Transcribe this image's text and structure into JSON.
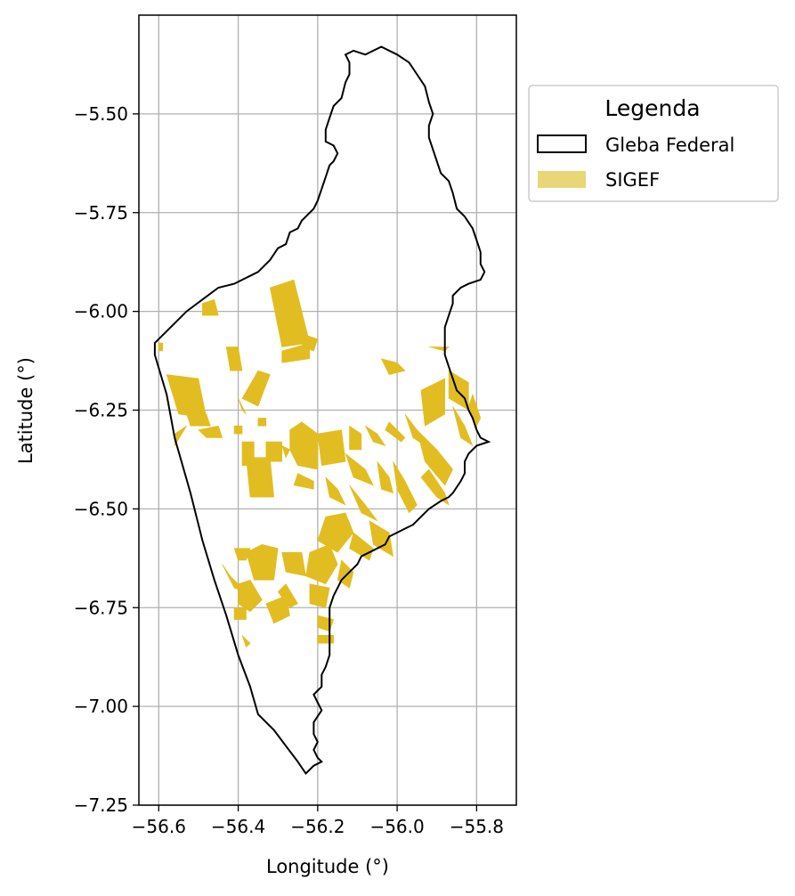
{
  "map": {
    "xlabel": "Longitude (°)",
    "ylabel": "Latitude (°)",
    "xlim": [
      -56.65,
      -55.7
    ],
    "ylim": [
      -7.25,
      -5.25
    ],
    "xticks": [
      -56.6,
      -56.4,
      -56.2,
      -56.0,
      -55.8
    ],
    "xtick_labels": [
      "−56.6",
      "−56.4",
      "−56.2",
      "−56.0",
      "−55.8"
    ],
    "yticks": [
      -5.5,
      -5.75,
      -6.0,
      -6.25,
      -6.5,
      -6.75,
      -7.0,
      -7.25
    ],
    "ytick_labels": [
      "−5.50",
      "−5.75",
      "−6.00",
      "−6.25",
      "−6.50",
      "−6.75",
      "−7.00",
      "−7.25"
    ],
    "grid": true
  },
  "legend": {
    "title": "Legenda",
    "items": [
      {
        "label": "Gleba Federal",
        "swatch": "outline",
        "color": "#000000"
      },
      {
        "label": "SIGEF",
        "swatch": "fill",
        "color": "#e9d676"
      }
    ]
  },
  "colors": {
    "sigef_fill": "#e1bd21",
    "boundary": "#000000",
    "grid": "#b0b0b0"
  },
  "gleba_federal": [
    [
      -56.61,
      -6.08
    ],
    [
      -56.57,
      -6.04
    ],
    [
      -56.53,
      -6.0
    ],
    [
      -56.49,
      -5.97
    ],
    [
      -56.45,
      -5.94
    ],
    [
      -56.41,
      -5.93
    ],
    [
      -56.37,
      -5.91
    ],
    [
      -56.35,
      -5.9
    ],
    [
      -56.32,
      -5.87
    ],
    [
      -56.3,
      -5.84
    ],
    [
      -56.28,
      -5.83
    ],
    [
      -56.27,
      -5.8
    ],
    [
      -56.25,
      -5.79
    ],
    [
      -56.24,
      -5.77
    ],
    [
      -56.23,
      -5.76
    ],
    [
      -56.21,
      -5.74
    ],
    [
      -56.2,
      -5.72
    ],
    [
      -56.19,
      -5.69
    ],
    [
      -56.18,
      -5.66
    ],
    [
      -56.17,
      -5.63
    ],
    [
      -56.16,
      -5.62
    ],
    [
      -56.15,
      -5.6
    ],
    [
      -56.16,
      -5.58
    ],
    [
      -56.18,
      -5.57
    ],
    [
      -56.18,
      -5.54
    ],
    [
      -56.17,
      -5.51
    ],
    [
      -56.16,
      -5.48
    ],
    [
      -56.14,
      -5.46
    ],
    [
      -56.13,
      -5.42
    ],
    [
      -56.12,
      -5.4
    ],
    [
      -56.12,
      -5.37
    ],
    [
      -56.13,
      -5.35
    ],
    [
      -56.11,
      -5.34
    ],
    [
      -56.08,
      -5.35
    ],
    [
      -56.06,
      -5.34
    ],
    [
      -56.04,
      -5.33
    ],
    [
      -56.0,
      -5.35
    ],
    [
      -55.97,
      -5.37
    ],
    [
      -55.95,
      -5.4
    ],
    [
      -55.93,
      -5.43
    ],
    [
      -55.92,
      -5.47
    ],
    [
      -55.91,
      -5.5
    ],
    [
      -55.92,
      -5.53
    ],
    [
      -55.92,
      -5.56
    ],
    [
      -55.91,
      -5.59
    ],
    [
      -55.9,
      -5.62
    ],
    [
      -55.89,
      -5.65
    ],
    [
      -55.87,
      -5.67
    ],
    [
      -55.86,
      -5.7
    ],
    [
      -55.85,
      -5.74
    ],
    [
      -55.83,
      -5.76
    ],
    [
      -55.81,
      -5.79
    ],
    [
      -55.8,
      -5.82
    ],
    [
      -55.79,
      -5.85
    ],
    [
      -55.79,
      -5.88
    ],
    [
      -55.78,
      -5.9
    ],
    [
      -55.79,
      -5.92
    ],
    [
      -55.82,
      -5.93
    ],
    [
      -55.84,
      -5.94
    ],
    [
      -55.86,
      -5.96
    ],
    [
      -55.86,
      -5.98
    ],
    [
      -55.87,
      -6.01
    ],
    [
      -55.88,
      -6.04
    ],
    [
      -55.88,
      -6.08
    ],
    [
      -55.88,
      -6.11
    ],
    [
      -55.87,
      -6.14
    ],
    [
      -55.86,
      -6.17
    ],
    [
      -55.85,
      -6.2
    ],
    [
      -55.83,
      -6.22
    ],
    [
      -55.82,
      -6.25
    ],
    [
      -55.81,
      -6.27
    ],
    [
      -55.8,
      -6.3
    ],
    [
      -55.79,
      -6.32
    ],
    [
      -55.77,
      -6.33
    ],
    [
      -55.8,
      -6.34
    ],
    [
      -55.82,
      -6.36
    ],
    [
      -55.83,
      -6.38
    ],
    [
      -55.83,
      -6.41
    ],
    [
      -55.84,
      -6.43
    ],
    [
      -55.86,
      -6.46
    ],
    [
      -55.87,
      -6.47
    ],
    [
      -55.89,
      -6.48
    ],
    [
      -55.92,
      -6.5
    ],
    [
      -55.94,
      -6.52
    ],
    [
      -55.96,
      -6.54
    ],
    [
      -55.98,
      -6.55
    ],
    [
      -56.0,
      -6.56
    ],
    [
      -56.02,
      -6.57
    ],
    [
      -56.03,
      -6.59
    ],
    [
      -56.05,
      -6.6
    ],
    [
      -56.07,
      -6.61
    ],
    [
      -56.09,
      -6.62
    ],
    [
      -56.1,
      -6.64
    ],
    [
      -56.12,
      -6.66
    ],
    [
      -56.14,
      -6.68
    ],
    [
      -56.15,
      -6.7
    ],
    [
      -56.16,
      -6.72
    ],
    [
      -56.17,
      -6.75
    ],
    [
      -56.17,
      -6.78
    ],
    [
      -56.17,
      -6.81
    ],
    [
      -56.17,
      -6.84
    ],
    [
      -56.17,
      -6.87
    ],
    [
      -56.18,
      -6.9
    ],
    [
      -56.19,
      -6.92
    ],
    [
      -56.19,
      -6.95
    ],
    [
      -56.21,
      -6.97
    ],
    [
      -56.2,
      -6.99
    ],
    [
      -56.19,
      -7.01
    ],
    [
      -56.21,
      -7.04
    ],
    [
      -56.21,
      -7.07
    ],
    [
      -56.2,
      -7.09
    ],
    [
      -56.21,
      -7.11
    ],
    [
      -56.2,
      -7.13
    ],
    [
      -56.19,
      -7.14
    ],
    [
      -56.21,
      -7.15
    ],
    [
      -56.23,
      -7.17
    ],
    [
      -56.25,
      -7.14
    ],
    [
      -56.28,
      -7.1
    ],
    [
      -56.31,
      -7.06
    ],
    [
      -56.35,
      -7.02
    ],
    [
      -56.37,
      -6.95
    ],
    [
      -56.4,
      -6.87
    ],
    [
      -56.43,
      -6.77
    ],
    [
      -56.46,
      -6.68
    ],
    [
      -56.49,
      -6.58
    ],
    [
      -56.52,
      -6.46
    ],
    [
      -56.56,
      -6.32
    ],
    [
      -56.58,
      -6.21
    ],
    [
      -56.61,
      -6.11
    ],
    [
      -56.61,
      -6.08
    ]
  ],
  "sigef_parcels": [
    [
      [
        -56.32,
        -5.94
      ],
      [
        -56.26,
        -5.92
      ],
      [
        -56.22,
        -6.08
      ],
      [
        -56.29,
        -6.09
      ]
    ],
    [
      [
        -56.23,
        -6.06
      ],
      [
        -56.2,
        -6.07
      ],
      [
        -56.21,
        -6.1
      ],
      [
        -56.24,
        -6.09
      ]
    ],
    [
      [
        -56.29,
        -6.1
      ],
      [
        -56.22,
        -6.08
      ],
      [
        -56.22,
        -6.12
      ],
      [
        -56.29,
        -6.13
      ]
    ],
    [
      [
        -56.49,
        -5.98
      ],
      [
        -56.46,
        -5.97
      ],
      [
        -56.45,
        -6.01
      ],
      [
        -56.49,
        -6.01
      ]
    ],
    [
      [
        -56.6,
        -6.08
      ],
      [
        -56.59,
        -6.08
      ],
      [
        -56.59,
        -6.1
      ],
      [
        -56.6,
        -6.1
      ]
    ],
    [
      [
        -56.43,
        -6.09
      ],
      [
        -56.4,
        -6.09
      ],
      [
        -56.39,
        -6.15
      ],
      [
        -56.42,
        -6.15
      ]
    ],
    [
      [
        -56.58,
        -6.16
      ],
      [
        -56.5,
        -6.17
      ],
      [
        -56.48,
        -6.27
      ],
      [
        -56.55,
        -6.26
      ]
    ],
    [
      [
        -56.53,
        -6.26
      ],
      [
        -56.48,
        -6.26
      ],
      [
        -56.47,
        -6.29
      ],
      [
        -56.52,
        -6.29
      ]
    ],
    [
      [
        -56.56,
        -6.31
      ],
      [
        -56.53,
        -6.29
      ],
      [
        -56.56,
        -6.34
      ]
    ],
    [
      [
        -56.35,
        -6.15
      ],
      [
        -56.32,
        -6.16
      ],
      [
        -56.35,
        -6.24
      ],
      [
        -56.39,
        -6.22
      ]
    ],
    [
      [
        -56.4,
        -6.22
      ],
      [
        -56.38,
        -6.26
      ],
      [
        -56.39,
        -6.25
      ]
    ],
    [
      [
        -56.39,
        -6.33
      ],
      [
        -56.36,
        -6.33
      ],
      [
        -56.36,
        -6.39
      ],
      [
        -56.39,
        -6.39
      ]
    ],
    [
      [
        -56.35,
        -6.27
      ],
      [
        -56.33,
        -6.27
      ],
      [
        -56.33,
        -6.29
      ],
      [
        -56.35,
        -6.29
      ]
    ],
    [
      [
        -56.38,
        -6.37
      ],
      [
        -56.32,
        -6.37
      ],
      [
        -56.31,
        -6.47
      ],
      [
        -56.37,
        -6.47
      ]
    ],
    [
      [
        -56.33,
        -6.33
      ],
      [
        -56.29,
        -6.33
      ],
      [
        -56.29,
        -6.38
      ],
      [
        -56.33,
        -6.38
      ]
    ],
    [
      [
        -56.27,
        -6.3
      ],
      [
        -56.24,
        -6.28
      ],
      [
        -56.2,
        -6.31
      ],
      [
        -56.2,
        -6.4
      ],
      [
        -56.25,
        -6.39
      ],
      [
        -56.27,
        -6.35
      ]
    ],
    [
      [
        -56.2,
        -6.31
      ],
      [
        -56.14,
        -6.3
      ],
      [
        -56.13,
        -6.38
      ],
      [
        -56.19,
        -6.39
      ]
    ],
    [
      [
        -56.25,
        -6.41
      ],
      [
        -56.21,
        -6.43
      ],
      [
        -56.21,
        -6.45
      ],
      [
        -56.26,
        -6.44
      ]
    ],
    [
      [
        -56.18,
        -6.42
      ],
      [
        -56.15,
        -6.45
      ],
      [
        -56.13,
        -6.49
      ],
      [
        -56.17,
        -6.47
      ]
    ],
    [
      [
        -56.13,
        -6.36
      ],
      [
        -56.08,
        -6.4
      ],
      [
        -56.06,
        -6.44
      ],
      [
        -56.11,
        -6.42
      ]
    ],
    [
      [
        -56.12,
        -6.29
      ],
      [
        -56.09,
        -6.31
      ],
      [
        -56.09,
        -6.35
      ],
      [
        -56.12,
        -6.35
      ]
    ],
    [
      [
        -56.08,
        -6.29
      ],
      [
        -56.05,
        -6.31
      ],
      [
        -56.03,
        -6.34
      ],
      [
        -56.06,
        -6.33
      ]
    ],
    [
      [
        -56.05,
        -6.38
      ],
      [
        -56.02,
        -6.42
      ],
      [
        -56.01,
        -6.46
      ],
      [
        -56.04,
        -6.45
      ]
    ],
    [
      [
        -56.12,
        -6.44
      ],
      [
        -56.08,
        -6.49
      ],
      [
        -56.05,
        -6.53
      ],
      [
        -56.09,
        -6.51
      ]
    ],
    [
      [
        -56.01,
        -6.38
      ],
      [
        -55.98,
        -6.43
      ],
      [
        -55.95,
        -6.49
      ],
      [
        -55.97,
        -6.51
      ],
      [
        -56.0,
        -6.45
      ]
    ],
    [
      [
        -55.95,
        -6.3
      ],
      [
        -55.9,
        -6.35
      ],
      [
        -55.86,
        -6.4
      ],
      [
        -55.88,
        -6.44
      ],
      [
        -55.93,
        -6.38
      ]
    ],
    [
      [
        -55.92,
        -6.4
      ],
      [
        -55.88,
        -6.46
      ],
      [
        -55.87,
        -6.49
      ],
      [
        -55.9,
        -6.47
      ],
      [
        -55.94,
        -6.42
      ]
    ],
    [
      [
        -55.98,
        -6.26
      ],
      [
        -55.95,
        -6.3
      ],
      [
        -55.93,
        -6.34
      ],
      [
        -55.96,
        -6.32
      ]
    ],
    [
      [
        -56.04,
        -6.12
      ],
      [
        -56.0,
        -6.13
      ],
      [
        -55.98,
        -6.15
      ],
      [
        -56.02,
        -6.16
      ]
    ],
    [
      [
        -55.94,
        -6.2
      ],
      [
        -55.88,
        -6.17
      ],
      [
        -55.88,
        -6.26
      ],
      [
        -55.93,
        -6.29
      ]
    ],
    [
      [
        -55.87,
        -6.15
      ],
      [
        -55.82,
        -6.18
      ],
      [
        -55.82,
        -6.25
      ],
      [
        -55.87,
        -6.22
      ]
    ],
    [
      [
        -55.86,
        -6.24
      ],
      [
        -55.83,
        -6.29
      ],
      [
        -55.81,
        -6.34
      ],
      [
        -55.84,
        -6.32
      ]
    ],
    [
      [
        -55.81,
        -6.21
      ],
      [
        -55.79,
        -6.27
      ],
      [
        -55.8,
        -6.29
      ],
      [
        -55.82,
        -6.24
      ]
    ],
    [
      [
        -55.92,
        -6.09
      ],
      [
        -55.87,
        -6.09
      ],
      [
        -55.88,
        -6.1
      ]
    ],
    [
      [
        -56.02,
        -6.28
      ],
      [
        -55.98,
        -6.32
      ],
      [
        -55.99,
        -6.33
      ],
      [
        -56.03,
        -6.3
      ]
    ],
    [
      [
        -56.18,
        -6.52
      ],
      [
        -56.13,
        -6.51
      ],
      [
        -56.11,
        -6.56
      ],
      [
        -56.15,
        -6.61
      ],
      [
        -56.2,
        -6.58
      ]
    ],
    [
      [
        -56.07,
        -6.53
      ],
      [
        -56.02,
        -6.56
      ],
      [
        -56.01,
        -6.62
      ],
      [
        -56.06,
        -6.59
      ]
    ],
    [
      [
        -56.11,
        -6.56
      ],
      [
        -56.06,
        -6.6
      ],
      [
        -56.07,
        -6.63
      ],
      [
        -56.12,
        -6.6
      ]
    ],
    [
      [
        -56.38,
        -6.61
      ],
      [
        -56.34,
        -6.59
      ],
      [
        -56.3,
        -6.6
      ],
      [
        -56.31,
        -6.68
      ],
      [
        -56.36,
        -6.68
      ]
    ],
    [
      [
        -56.29,
        -6.61
      ],
      [
        -56.24,
        -6.61
      ],
      [
        -56.23,
        -6.67
      ],
      [
        -56.28,
        -6.66
      ]
    ],
    [
      [
        -56.22,
        -6.61
      ],
      [
        -56.17,
        -6.59
      ],
      [
        -56.15,
        -6.64
      ],
      [
        -56.18,
        -6.69
      ],
      [
        -56.23,
        -6.67
      ]
    ],
    [
      [
        -56.41,
        -6.6
      ],
      [
        -56.37,
        -6.6
      ],
      [
        -56.38,
        -6.63
      ],
      [
        -56.4,
        -6.63
      ]
    ],
    [
      [
        -56.14,
        -6.63
      ],
      [
        -56.11,
        -6.66
      ],
      [
        -56.12,
        -6.7
      ],
      [
        -56.15,
        -6.68
      ]
    ],
    [
      [
        -56.22,
        -6.69
      ],
      [
        -56.17,
        -6.7
      ],
      [
        -56.18,
        -6.75
      ],
      [
        -56.22,
        -6.74
      ]
    ],
    [
      [
        -56.4,
        -6.69
      ],
      [
        -56.37,
        -6.68
      ],
      [
        -56.34,
        -6.73
      ],
      [
        -56.37,
        -6.76
      ],
      [
        -56.4,
        -6.74
      ]
    ],
    [
      [
        -56.44,
        -6.64
      ],
      [
        -56.41,
        -6.7
      ],
      [
        -56.38,
        -6.71
      ],
      [
        -56.42,
        -6.67
      ]
    ],
    [
      [
        -56.33,
        -6.74
      ],
      [
        -56.28,
        -6.72
      ],
      [
        -56.27,
        -6.77
      ],
      [
        -56.31,
        -6.79
      ]
    ],
    [
      [
        -56.28,
        -6.69
      ],
      [
        -56.25,
        -6.74
      ],
      [
        -56.27,
        -6.75
      ],
      [
        -56.3,
        -6.71
      ]
    ],
    [
      [
        -56.41,
        -6.75
      ],
      [
        -56.38,
        -6.75
      ],
      [
        -56.38,
        -6.78
      ],
      [
        -56.41,
        -6.78
      ]
    ],
    [
      [
        -56.2,
        -6.77
      ],
      [
        -56.16,
        -6.78
      ],
      [
        -56.17,
        -6.81
      ],
      [
        -56.2,
        -6.8
      ]
    ],
    [
      [
        -56.2,
        -6.82
      ],
      [
        -56.16,
        -6.82
      ],
      [
        -56.16,
        -6.84
      ],
      [
        -56.2,
        -6.84
      ]
    ],
    [
      [
        -56.39,
        -6.82
      ],
      [
        -56.38,
        -6.85
      ],
      [
        -56.37,
        -6.84
      ]
    ],
    [
      [
        -56.29,
        -6.34
      ],
      [
        -56.28,
        -6.37
      ],
      [
        -56.27,
        -6.35
      ]
    ],
    [
      [
        -56.41,
        -6.29
      ],
      [
        -56.39,
        -6.29
      ],
      [
        -56.39,
        -6.31
      ],
      [
        -56.41,
        -6.31
      ]
    ],
    [
      [
        -56.5,
        -6.3
      ],
      [
        -56.45,
        -6.29
      ],
      [
        -56.44,
        -6.32
      ],
      [
        -56.48,
        -6.32
      ]
    ]
  ]
}
